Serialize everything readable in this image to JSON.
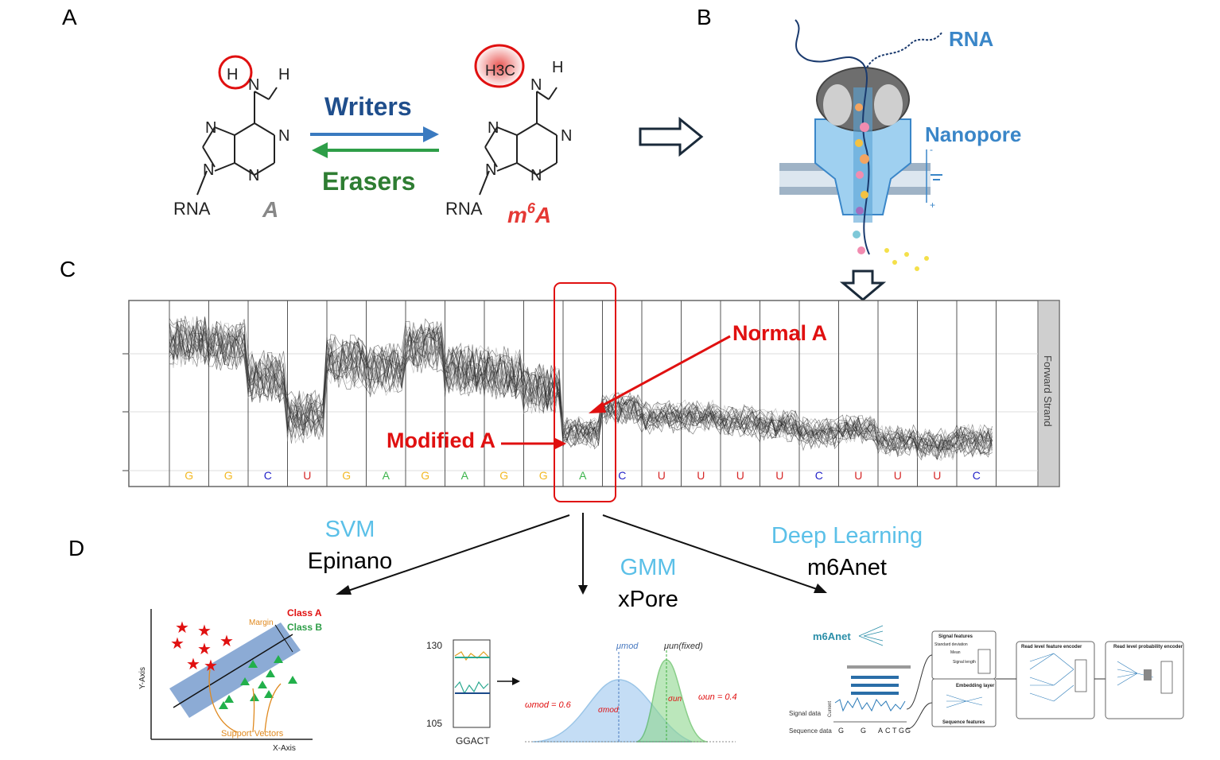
{
  "panels": {
    "a": "A",
    "b": "B",
    "c": "C",
    "d": "D"
  },
  "panel_a": {
    "left_h": "H",
    "left_nh": "H",
    "left_n_labels": [
      "N",
      "N",
      "N",
      "N",
      "N"
    ],
    "left_rna": "RNA",
    "left_name": "A",
    "writers": "Writers",
    "erasers": "Erasers",
    "right_methyl": "H3C",
    "right_nh": "H",
    "right_rna": "RNA",
    "right_name_base": "m",
    "right_name_sup": "6",
    "right_name_tail": "A",
    "writers_color": "#1f4e8c",
    "erasers_color": "#2e7d32",
    "mod_color": "#e53935"
  },
  "panel_b": {
    "rna_label": "RNA",
    "nanopore_label": "Nanopore",
    "minus": "-",
    "plus": "+",
    "label_color": "#3a86c8"
  },
  "panel_c": {
    "bases": [
      "G",
      "G",
      "C",
      "U",
      "G",
      "A",
      "G",
      "A",
      "G",
      "G",
      "A",
      "C",
      "U",
      "U",
      "U",
      "U",
      "C",
      "U",
      "U",
      "U",
      "C"
    ],
    "base_colors": {
      "G": "#f2b824",
      "C": "#2323c8",
      "U": "#d62828",
      "A": "#3cb44b"
    },
    "strand_label": "Forward Strand",
    "normal_label": "Normal A",
    "modified_label": "Modified A",
    "annot_color": "#e01010"
  },
  "panel_d": {
    "svm": {
      "method": "SVM",
      "tool": "Epinano",
      "class_a": "Class A",
      "class_b": "Class B",
      "margin": "Margin",
      "support": "Support Vectors",
      "x_axis": "X-Axis",
      "y_axis": "Y-Axis"
    },
    "gmm": {
      "method": "GMM",
      "tool": "xPore",
      "y_top": "130",
      "y_bottom": "105",
      "kmer": "GGACT",
      "mu_mod": "μmod",
      "mu_un": "μun(fixed)",
      "w_mod": "ωmod = 0.6",
      "w_un": "ωun = 0.4",
      "sigma_mod": "σmod",
      "sigma_un": "σun"
    },
    "dl": {
      "method": "Deep Learning",
      "tool": "m6Anet",
      "logo": "m6Anet",
      "signal_features": "Signal features",
      "std": "Standard deviation",
      "mean": "Mean",
      "signal_length": "Signal length",
      "embedding": "Embedding layer",
      "seq_features": "Sequence features",
      "read_feature_encoder": "Read level feature encoder",
      "read_prob_encoder": "Read level probability encoder",
      "signal_data": "Signal data",
      "sequence_data": "Sequence data",
      "current": "Current",
      "seq_letters": [
        "G",
        "G",
        "A",
        "C",
        "T",
        "G",
        "G"
      ]
    }
  }
}
